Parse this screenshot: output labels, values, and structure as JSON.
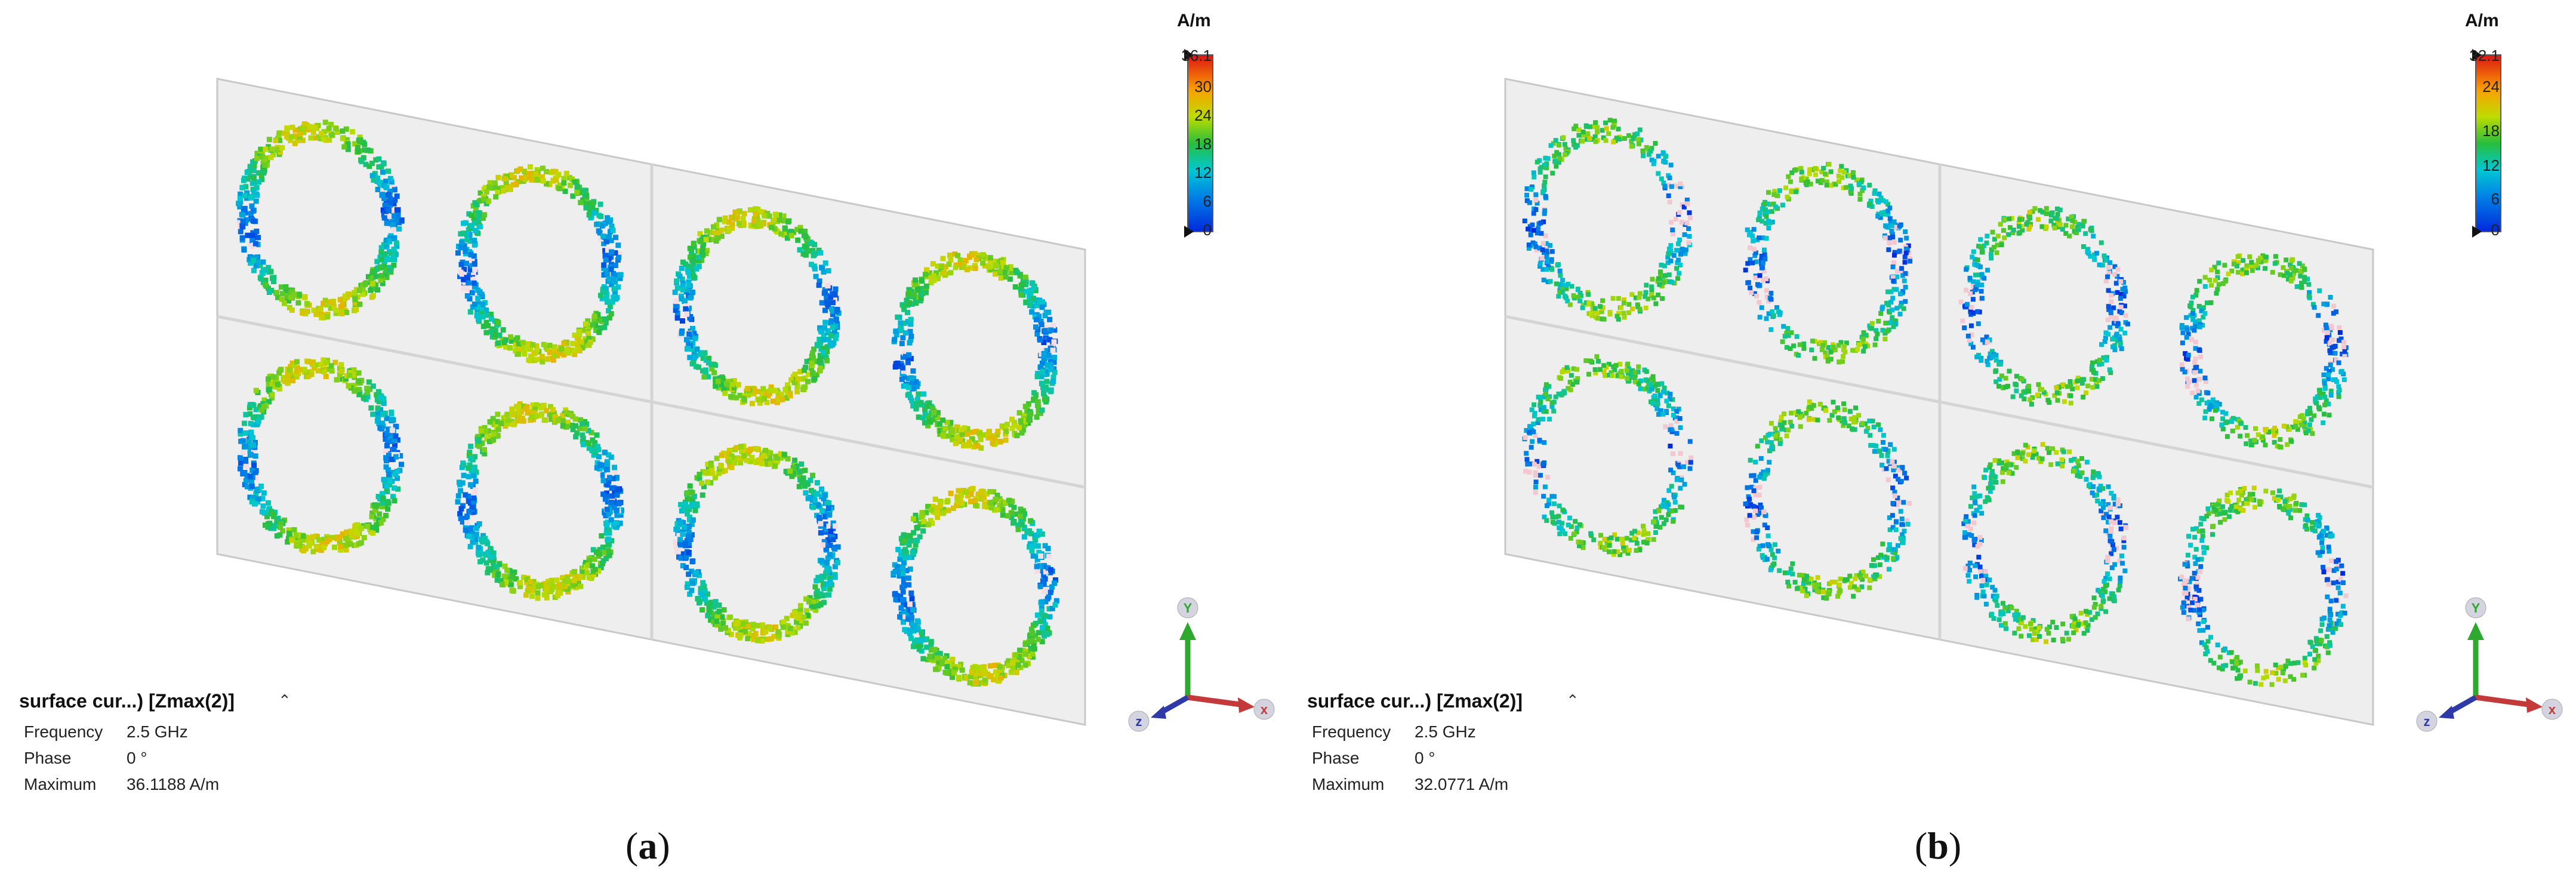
{
  "colors": {
    "panel_bg": "#eeeeee",
    "panel_border": "#c8c8c8"
  },
  "panels": [
    {
      "id": "a",
      "unit": "A/m",
      "colorbar_ticks": [
        "36.1",
        "30",
        "24",
        "18",
        "12",
        "6",
        "0"
      ],
      "colorbar_max": 36.1,
      "title": "surface cur...) [Zmax(2)]",
      "info": [
        {
          "label": "Frequency",
          "value": "2.5 GHz"
        },
        {
          "label": "Phase",
          "value": "0 °"
        },
        {
          "label": "Maximum",
          "value": "36.1188 A/m"
        }
      ],
      "caption_letter": "a"
    },
    {
      "id": "b",
      "unit": "A/m",
      "colorbar_ticks": [
        "32.1",
        "24",
        "18",
        "12",
        "6",
        "0"
      ],
      "colorbar_max": 32.1,
      "title": "surface cur...) [Zmax(2)]",
      "info": [
        {
          "label": "Frequency",
          "value": "2.5 GHz"
        },
        {
          "label": "Phase",
          "value": "0 °"
        },
        {
          "label": "Maximum",
          "value": "32.0771 A/m"
        }
      ],
      "caption_letter": "b"
    }
  ],
  "axes": {
    "y": "Y",
    "x": "x",
    "z": "z"
  }
}
